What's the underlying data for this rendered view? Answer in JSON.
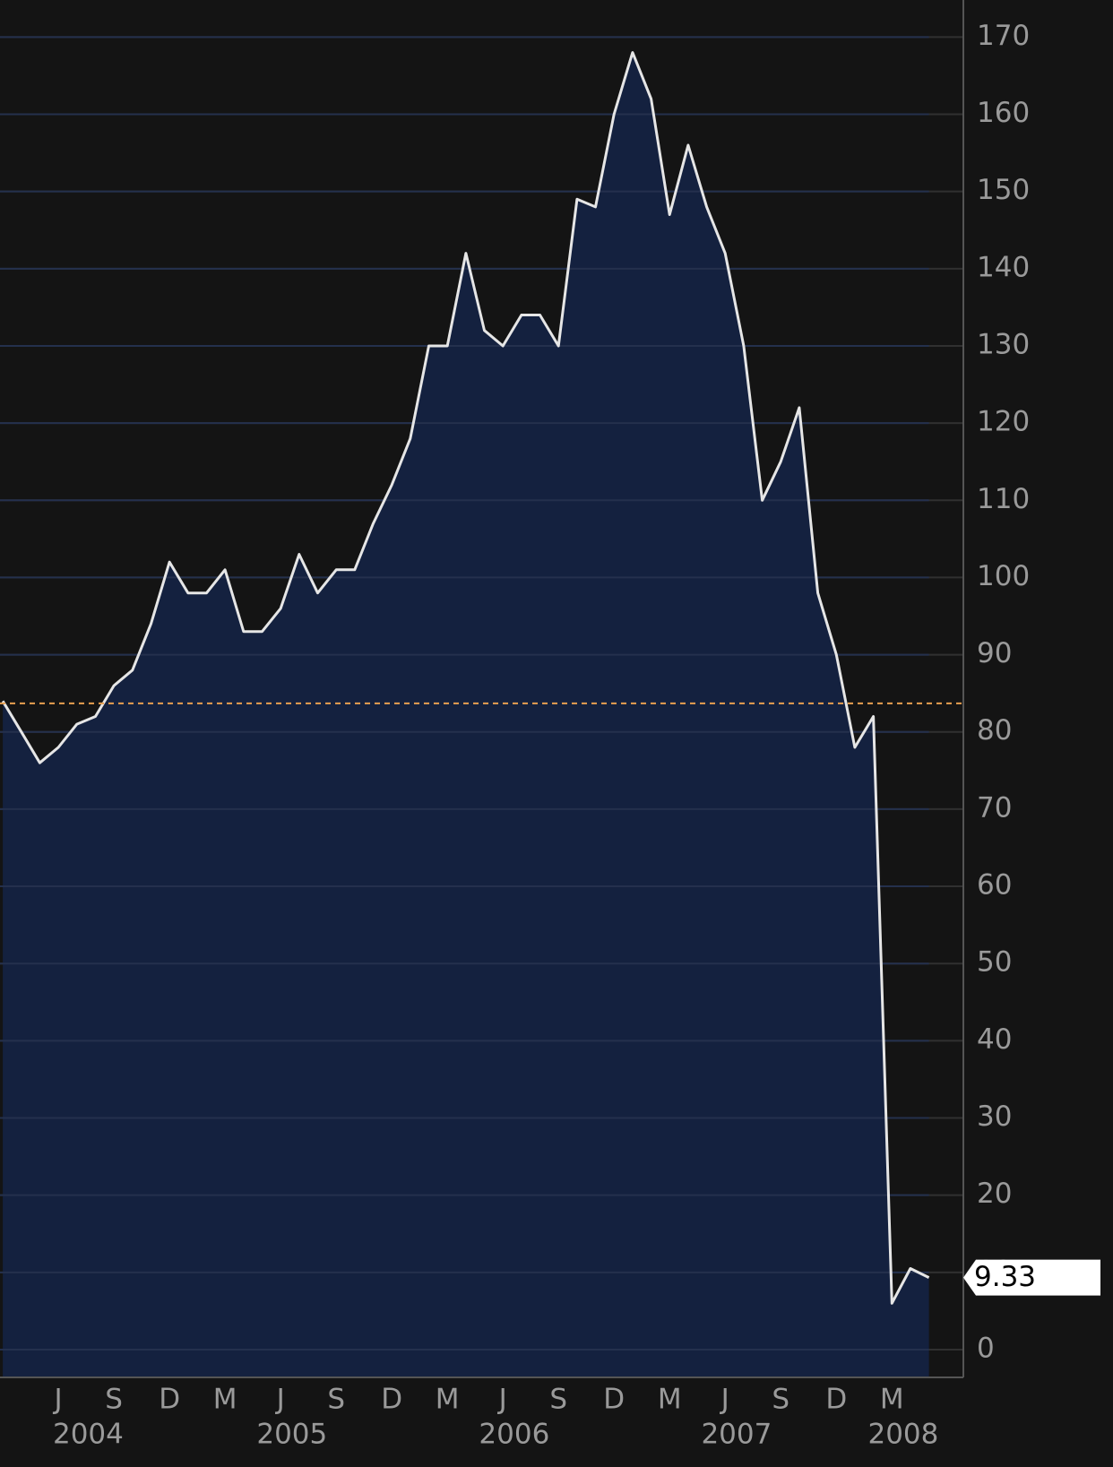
{
  "chart_data": {
    "type": "area",
    "x": [
      "2004-03",
      "2004-04",
      "2004-05",
      "2004-06",
      "2004-07",
      "2004-08",
      "2004-09",
      "2004-10",
      "2004-11",
      "2004-12",
      "2005-01",
      "2005-02",
      "2005-03",
      "2005-04",
      "2005-05",
      "2005-06",
      "2005-07",
      "2005-08",
      "2005-09",
      "2005-10",
      "2005-11",
      "2005-12",
      "2006-01",
      "2006-02",
      "2006-03",
      "2006-04",
      "2006-05",
      "2006-06",
      "2006-07",
      "2006-08",
      "2006-09",
      "2006-10",
      "2006-11",
      "2006-12",
      "2007-01",
      "2007-02",
      "2007-03",
      "2007-04",
      "2007-05",
      "2007-06",
      "2007-07",
      "2007-08",
      "2007-09",
      "2007-10",
      "2007-11",
      "2007-12",
      "2008-01",
      "2008-02",
      "2008-03",
      "2008-04",
      "2008-05"
    ],
    "series": [
      {
        "color": "#e6e6e6",
        "fill": "#14213f",
        "values": [
          84,
          80,
          76,
          78,
          81,
          82,
          86,
          88,
          94,
          102,
          98,
          98,
          101,
          93,
          93,
          96,
          103,
          98,
          101,
          101,
          107,
          112,
          118,
          130,
          130,
          142,
          132,
          130,
          134,
          134,
          130,
          149,
          148,
          160,
          168,
          162,
          147,
          156,
          148,
          142,
          130,
          110,
          115,
          122,
          98,
          90,
          78,
          82,
          6,
          10.5,
          9.33
        ]
      }
    ],
    "xticks": [
      {
        "value": "2004-06",
        "label": "J"
      },
      {
        "value": "2004-09",
        "label": "S"
      },
      {
        "value": "2004-12",
        "label": "D"
      },
      {
        "value": "2005-03",
        "label": "M"
      },
      {
        "value": "2005-06",
        "label": "J"
      },
      {
        "value": "2005-09",
        "label": "S"
      },
      {
        "value": "2005-12",
        "label": "D"
      },
      {
        "value": "2006-03",
        "label": "M"
      },
      {
        "value": "2006-06",
        "label": "J"
      },
      {
        "value": "2006-09",
        "label": "S"
      },
      {
        "value": "2006-12",
        "label": "D"
      },
      {
        "value": "2007-03",
        "label": "M"
      },
      {
        "value": "2007-06",
        "label": "J"
      },
      {
        "value": "2007-09",
        "label": "S"
      },
      {
        "value": "2007-12",
        "label": "D"
      },
      {
        "value": "2008-03",
        "label": "M"
      }
    ],
    "year_labels": [
      {
        "value": "2004-08",
        "label": "2004"
      },
      {
        "value": "2005-07",
        "label": "2005"
      },
      {
        "value": "2006-07",
        "label": "2006"
      },
      {
        "value": "2007-07",
        "label": "2007"
      },
      {
        "value": "2008-04",
        "label": "2008"
      }
    ],
    "ylim": [
      -3.6,
      174.8
    ],
    "yticks": [
      0,
      10,
      20,
      30,
      40,
      50,
      60,
      70,
      80,
      90,
      100,
      110,
      120,
      130,
      140,
      150,
      160,
      170
    ],
    "grid": true,
    "reference_value": 83.7,
    "reference_color": "#e8a050"
  }
}
